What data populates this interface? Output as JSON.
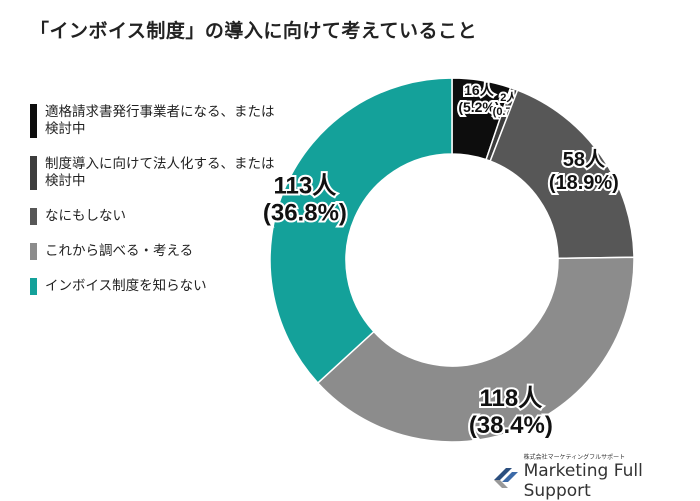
{
  "title": "「インボイス制度」の導入に向けて考えていること",
  "chart_data": {
    "type": "pie",
    "donut": true,
    "title": "「インボイス制度」の導入に向けて考えていること",
    "unit": "人",
    "categories": [
      "適格請求書発行事業者になる、または検討中",
      "制度導入に向けて法人化する、または検討中",
      "なにもしない",
      "これから調べる・考える",
      "インボイス制度を知らない"
    ],
    "values": [
      16,
      2,
      58,
      118,
      113
    ],
    "percentages": [
      5.2,
      0.7,
      18.9,
      38.4,
      36.8
    ],
    "data_labels": [
      [
        "16人",
        "(5.2%)"
      ],
      [
        "2人",
        "(0.7%)"
      ],
      [
        "58人",
        "(18.9%)"
      ],
      [
        "118人",
        "(38.4%)"
      ],
      [
        "113人",
        "(36.8%)"
      ]
    ],
    "colors": [
      "#0d0d0d",
      "#3d3d3d",
      "#575757",
      "#8c8c8c",
      "#14a19a"
    ],
    "legend_position": "left"
  },
  "logo": {
    "small": "株式会社マーケティングフルサポート",
    "main": "Marketing Full Support"
  }
}
